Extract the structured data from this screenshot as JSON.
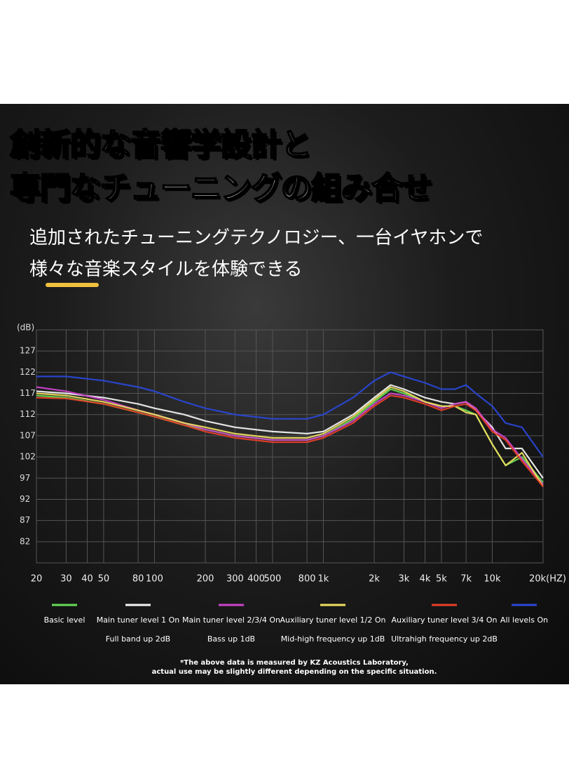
{
  "chart_data": {
    "type": "line",
    "title": [
      "創新的な音響学設計と",
      "専門なチューニングの組み合せ"
    ],
    "subtitle": [
      "追加されたチューニングテクノロジー、一台イヤホンで",
      "様々な音楽スタイルを体験できる"
    ],
    "y_label": "(dB)",
    "footnote": [
      "*The above data is measured by KZ Acoustics Laboratory,",
      "actual use may be slightly different depending on the specific situation."
    ],
    "x_scale": "log",
    "grid": true,
    "xlim": [
      20,
      20000
    ],
    "ylim": [
      77,
      132
    ],
    "xticks": [
      20,
      30,
      40,
      50,
      80,
      100,
      200,
      300,
      400,
      500,
      800,
      {
        "value": 1000,
        "label": "1k"
      },
      {
        "value": 2000,
        "label": "2k"
      },
      {
        "value": 3000,
        "label": "3k"
      },
      {
        "value": 4000,
        "label": "4k"
      },
      {
        "value": 5000,
        "label": "5k"
      },
      {
        "value": 7000,
        "label": "7k"
      },
      {
        "value": 10000,
        "label": "10k"
      },
      {
        "value": 20000,
        "label": "20k(HZ)"
      }
    ],
    "yticks": [
      82,
      87,
      92,
      97,
      102,
      107,
      112,
      117,
      122,
      127
    ],
    "x": [
      20,
      30,
      50,
      80,
      100,
      150,
      200,
      300,
      500,
      800,
      1000,
      1500,
      2000,
      2500,
      3000,
      4000,
      5000,
      6000,
      7000,
      8000,
      10000,
      12000,
      15000,
      20000
    ],
    "series": [
      {
        "name": "Basic level",
        "color": "#66dd55",
        "values": [
          116.5,
          116,
          114.5,
          112.5,
          111.5,
          109.5,
          108.5,
          107,
          106,
          106,
          107,
          111,
          115,
          118,
          117,
          115,
          114,
          114,
          113,
          112,
          105,
          100,
          102,
          96
        ]
      },
      {
        "name": "Main tuner level 1 On",
        "description": "Full band up 2dB",
        "color": "#f4f4f4",
        "values": [
          117.5,
          117,
          116,
          114.5,
          113.5,
          112,
          110.5,
          109,
          108,
          107.5,
          108,
          112,
          116,
          119,
          118,
          116,
          115,
          114.5,
          115,
          113,
          109,
          104,
          104,
          97
        ]
      },
      {
        "name": "Main tuner level 2/3/4 On",
        "description": "Bass up 1dB",
        "color": "#cc44cc",
        "values": [
          118.5,
          117.5,
          115.5,
          113,
          112,
          110,
          108.5,
          107,
          106,
          106,
          107,
          110.5,
          114.5,
          117,
          116.5,
          115,
          113.5,
          114.5,
          115,
          113.5,
          108.5,
          106.5,
          101.5,
          95.5
        ]
      },
      {
        "name": "Auxiliary tuner level 1/2 On",
        "description": "Mid-high frequency up 1dB",
        "color": "#f0e060",
        "values": [
          117,
          116.5,
          115,
          113,
          112,
          110,
          109,
          107.5,
          106.5,
          106.5,
          107.5,
          111.5,
          115.5,
          118.5,
          117.5,
          115,
          114,
          114,
          112.5,
          112,
          105,
          100,
          103,
          95
        ]
      },
      {
        "name": "Auxiliary tuner level 3/4 On",
        "description": "Ultrahigh frequency up 2dB",
        "color": "#e84028",
        "values": [
          116,
          115.8,
          114.5,
          112.5,
          111.5,
          109.5,
          108,
          106.5,
          105.5,
          105.5,
          106.5,
          110,
          114,
          116.5,
          116,
          114.5,
          113,
          114,
          114.5,
          113,
          108,
          106,
          101,
          95
        ]
      },
      {
        "name": "All levels On",
        "color": "#2a48d8",
        "values": [
          121,
          121,
          120,
          118.5,
          117.5,
          115,
          113.5,
          112,
          111,
          111,
          112,
          116,
          120,
          122,
          121,
          119.5,
          118,
          118,
          119,
          117,
          114,
          110,
          109,
          102
        ]
      }
    ]
  }
}
